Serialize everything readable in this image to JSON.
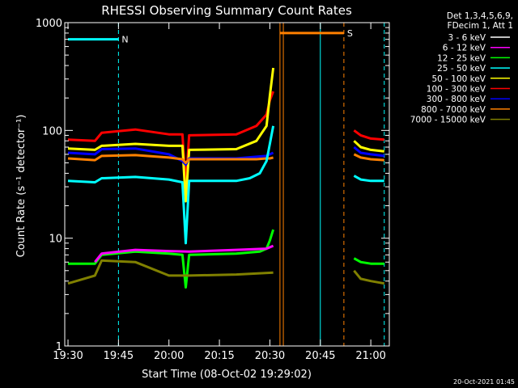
{
  "chart_data": {
    "type": "line",
    "title": "RHESSI Observing Summary Count Rates",
    "xlabel": "Start Time (08-Oct-02 19:29:02)",
    "ylabel": "Count Rate (s⁻¹ detector⁻¹)",
    "y_scale": "log",
    "ylim": [
      1,
      1000
    ],
    "xlim": [
      "19:29:02",
      "21:05:30"
    ],
    "x_ticks": [
      "19:30",
      "19:45",
      "20:00",
      "20:15",
      "20:30",
      "20:45",
      "21:00"
    ],
    "y_ticks": [
      "1",
      "10",
      "100",
      "1000"
    ],
    "footer_date": "20-Oct-2021 01:45",
    "legend_header": [
      "Det 1,3,4,5,6,9,",
      "FDecim 1, Att 1"
    ],
    "legend_position": "right",
    "series": [
      {
        "name": "3 - 6 keV",
        "color": "#ffffff"
      },
      {
        "name": "6 - 12 keV",
        "color": "#ff00ff"
      },
      {
        "name": "12 - 25 keV",
        "color": "#00ff00"
      },
      {
        "name": "25 - 50 keV",
        "color": "#00ffff"
      },
      {
        "name": "50 - 100 keV",
        "color": "#ffff00"
      },
      {
        "name": "100 - 300 keV",
        "color": "#ff0000"
      },
      {
        "name": "300 - 800 keV",
        "color": "#0000ff"
      },
      {
        "name": "800 - 7000 keV",
        "color": "#ff8000"
      },
      {
        "name": "7000 - 15000 keV",
        "color": "#808000"
      }
    ],
    "levels": [
      {
        "series": "100 - 300 keV",
        "x": [
          "19:30",
          "19:38",
          "19:40",
          "19:50",
          "20:00",
          "20:04",
          "20:05",
          "20:06",
          "20:20",
          "20:26",
          "20:29",
          "20:30",
          "20:31"
        ],
        "y": [
          82,
          80,
          95,
          102,
          92,
          92,
          30,
          90,
          92,
          110,
          140,
          190,
          230
        ]
      },
      {
        "series": "50 - 100 keV",
        "x": [
          "19:30",
          "19:38",
          "19:40",
          "19:50",
          "20:00",
          "20:04",
          "20:05",
          "20:06",
          "20:20",
          "20:26",
          "20:29",
          "20:30",
          "20:31"
        ],
        "y": [
          68,
          66,
          72,
          75,
          72,
          72,
          22,
          66,
          67,
          80,
          110,
          210,
          380
        ]
      },
      {
        "series": "300 - 800 keV",
        "x": [
          "19:30",
          "19:38",
          "19:40",
          "19:50",
          "20:00",
          "20:04",
          "20:05",
          "20:06",
          "20:20",
          "20:26",
          "20:29",
          "20:30",
          "20:31"
        ],
        "y": [
          62,
          60,
          67,
          68,
          60,
          52,
          48,
          55,
          55,
          57,
          58,
          60,
          62
        ]
      },
      {
        "series": "800 - 7000 keV",
        "x": [
          "19:30",
          "19:38",
          "19:40",
          "19:50",
          "20:00",
          "20:04",
          "20:05",
          "20:06",
          "20:20",
          "20:26",
          "20:29",
          "20:30",
          "20:31"
        ],
        "y": [
          55,
          53,
          58,
          59,
          56,
          54,
          50,
          54,
          54,
          54,
          55,
          55,
          56
        ]
      },
      {
        "series": "25 - 50 keV",
        "x": [
          "19:30",
          "19:38",
          "19:40",
          "19:50",
          "20:00",
          "20:04",
          "20:05",
          "20:06",
          "20:20",
          "20:24",
          "20:27",
          "20:29",
          "20:30",
          "20:31"
        ],
        "y": [
          34,
          33,
          36,
          37,
          35,
          33,
          9,
          34,
          34,
          36,
          40,
          52,
          75,
          110
        ]
      },
      {
        "series": "12 - 25 keV",
        "x": [
          "19:30",
          "19:38",
          "19:40",
          "19:50",
          "20:00",
          "20:04",
          "20:05",
          "20:06",
          "20:20",
          "20:27",
          "20:29",
          "20:30",
          "20:31"
        ],
        "y": [
          5.8,
          5.8,
          7.0,
          7.5,
          7.2,
          7.0,
          3.5,
          7.0,
          7.2,
          7.5,
          8.0,
          9.5,
          12
        ]
      },
      {
        "series": "6 - 12 keV",
        "x": [
          "19:38",
          "19:40",
          "19:50",
          "20:00",
          "20:06",
          "20:20",
          "20:29",
          "20:31"
        ],
        "y": [
          6.0,
          7.2,
          7.8,
          7.6,
          7.5,
          7.8,
          8.0,
          8.5
        ]
      },
      {
        "series": "7000 - 15000 keV",
        "x": [
          "19:30",
          "19:38",
          "19:40",
          "19:50",
          "20:00",
          "20:06",
          "20:20",
          "20:31"
        ],
        "y": [
          3.8,
          4.5,
          6.2,
          6.0,
          4.5,
          4.5,
          4.6,
          4.8
        ]
      },
      {
        "series": "100 - 300 keV",
        "x": [
          "20:55",
          "20:57",
          "21:00",
          "21:04"
        ],
        "y": [
          100,
          90,
          84,
          82
        ]
      },
      {
        "series": "50 - 100 keV",
        "x": [
          "20:55",
          "20:57",
          "21:00",
          "21:04"
        ],
        "y": [
          80,
          70,
          66,
          64
        ]
      },
      {
        "series": "300 - 800 keV",
        "x": [
          "20:55",
          "20:57",
          "21:00",
          "21:04"
        ],
        "y": [
          70,
          62,
          60,
          58
        ]
      },
      {
        "series": "800 - 7000 keV",
        "x": [
          "20:55",
          "20:57",
          "21:00",
          "21:04"
        ],
        "y": [
          60,
          56,
          54,
          53
        ]
      },
      {
        "series": "25 - 50 keV",
        "x": [
          "20:55",
          "20:57",
          "21:00",
          "21:04"
        ],
        "y": [
          38,
          35,
          34,
          34
        ]
      },
      {
        "series": "12 - 25 keV",
        "x": [
          "20:55",
          "20:57",
          "21:00",
          "21:04"
        ],
        "y": [
          6.5,
          6.0,
          5.8,
          5.8
        ]
      },
      {
        "series": "7000 - 15000 keV",
        "x": [
          "20:55",
          "20:57",
          "21:00",
          "21:04"
        ],
        "y": [
          5.0,
          4.2,
          4.0,
          3.8
        ]
      }
    ],
    "annotations": [
      {
        "text": "N",
        "color": "#00ffff",
        "x_start": "19:30",
        "x_end": "19:45",
        "y": 700
      },
      {
        "text": "S",
        "color": "#ff8000",
        "x_start": "20:33",
        "x_end": "20:52",
        "y": 800
      }
    ],
    "vertical_markers": [
      {
        "x": "19:45",
        "color": "#00ffff",
        "style": "dashed"
      },
      {
        "x": "20:33",
        "color": "#ff8000",
        "style": "solid"
      },
      {
        "x": "20:34",
        "color": "#ff8000",
        "style": "solid"
      },
      {
        "x": "20:45",
        "color": "#00ffff",
        "style": "solid"
      },
      {
        "x": "20:52",
        "color": "#ff8000",
        "style": "dashed"
      },
      {
        "x": "21:04",
        "color": "#00ffff",
        "style": "dashed"
      }
    ],
    "gaps": [
      {
        "x_start": "20:33",
        "x_end": "20:54"
      }
    ],
    "grid": false
  }
}
